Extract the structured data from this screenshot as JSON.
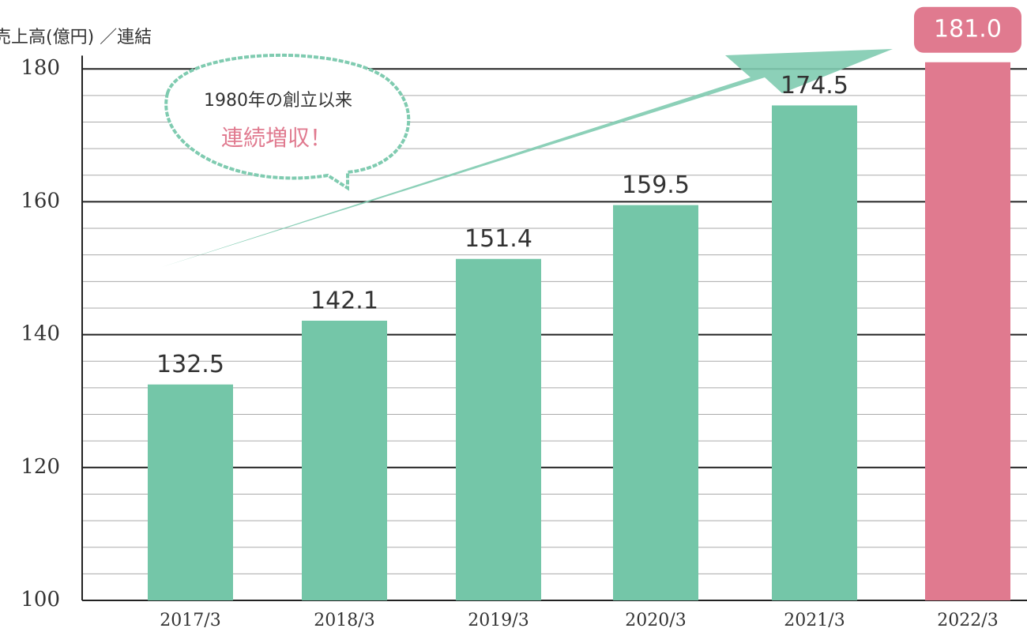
{
  "chart_data": {
    "type": "bar",
    "y_axis_label": "売上高(億円) ／連結",
    "annotation": [
      "1980年の創立以来",
      "連続増収！"
    ],
    "categories": [
      "2017/3",
      "2018/3",
      "2019/3",
      "2020/3",
      "2021/3",
      "2022/3"
    ],
    "values": [
      132.5,
      142.1,
      151.4,
      159.5,
      174.5,
      181.0
    ],
    "value_labels": [
      "132.5",
      "142.1",
      "151.4",
      "159.5",
      "174.5",
      "181.0"
    ],
    "colors": [
      "#74c6a8",
      "#74c6a8",
      "#74c6a8",
      "#74c6a8",
      "#74c6a8",
      "#e07a8f"
    ],
    "ylim": [
      100,
      182
    ],
    "yticks": [
      100,
      120,
      140,
      160,
      180
    ],
    "minor_yticks": [
      104,
      108,
      112,
      116,
      124,
      128,
      132,
      136,
      144,
      148,
      152,
      156,
      164,
      168,
      172,
      176
    ],
    "grid": true
  }
}
